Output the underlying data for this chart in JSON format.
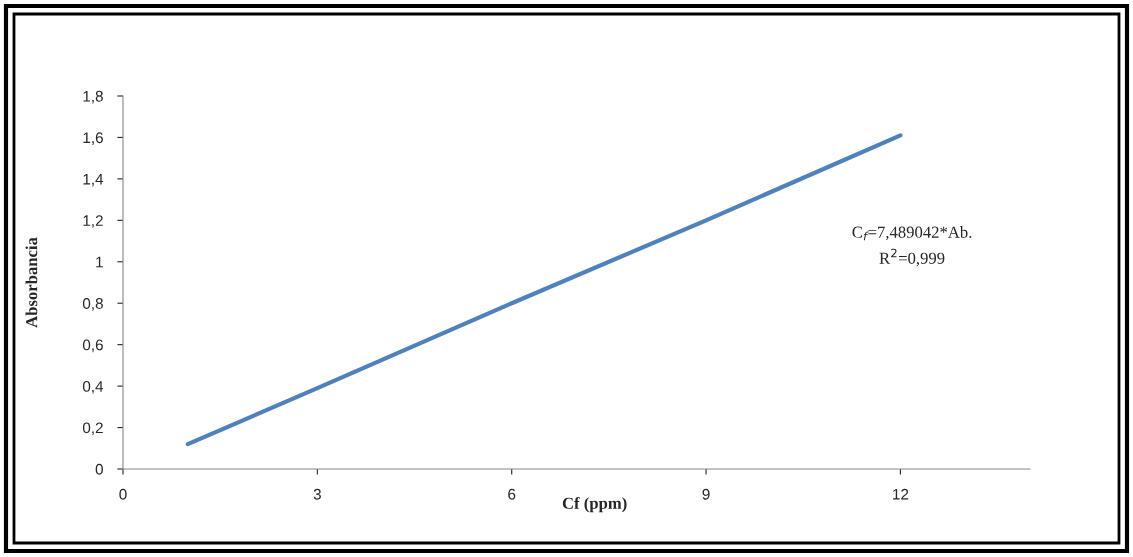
{
  "chart_data": {
    "type": "line",
    "xlabel": "Cf (ppm)",
    "ylabel": "Absorbancia",
    "x": [
      1,
      3,
      6,
      9,
      12
    ],
    "series": [
      {
        "color": "#4f81bd",
        "values": [
          0.12,
          0.39,
          0.8,
          1.2,
          1.61
        ]
      }
    ],
    "xlim": [
      0,
      14
    ],
    "xticks": [
      0,
      3,
      6,
      9,
      12
    ],
    "ylim": [
      0,
      1.8
    ],
    "yticks": [
      0,
      {
        "value": 0.2,
        "label": "0,2"
      },
      {
        "value": 0.4,
        "label": "0,4"
      },
      {
        "value": 0.6,
        "label": "0,6"
      },
      {
        "value": 0.8,
        "label": "0,8"
      },
      1,
      {
        "value": 1.2,
        "label": "1,2"
      },
      {
        "value": 1.4,
        "label": "1,4"
      },
      {
        "value": 1.6,
        "label": "1,6"
      },
      {
        "value": 1.8,
        "label": "1,8"
      }
    ],
    "annotations": [
      "C$_{f}$=7,489042*Ab.",
      "R$^{2}$=0,999"
    ],
    "grid": false,
    "legend": false,
    "marker": "none",
    "line_style": "solid"
  }
}
